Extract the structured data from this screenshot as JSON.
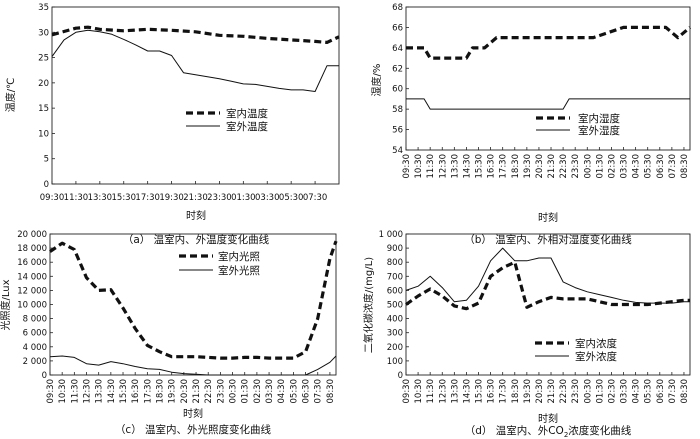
{
  "chart_data": [
    {
      "id": "a",
      "type": "line",
      "caption": "（a） 温室内、外温度变化曲线",
      "xlabel": "时刻",
      "ylabel": "温度/℃",
      "ylim": [
        0,
        35
      ],
      "yticks": [
        "0",
        "5",
        "10",
        "15",
        "20",
        "25",
        "30",
        "35"
      ],
      "ytick_values": [
        0,
        5,
        10,
        15,
        20,
        25,
        30,
        35
      ],
      "categories": [
        "09:30",
        "11:30",
        "13:30",
        "15:30",
        "17:30",
        "19:30",
        "21:30",
        "23:30",
        "01:30",
        "03:30",
        "05:30",
        "07:30"
      ],
      "xrange": [
        7.5,
        31.5
      ],
      "legend_position": "center",
      "series": [
        {
          "name": "室内温度",
          "style": "dashed",
          "x": [
            7.5,
            9.5,
            10.5,
            11.5,
            13.5,
            15.5,
            17.5,
            19.5,
            21.5,
            23.5,
            25.5,
            27.5,
            29.5,
            30.5,
            31.5
          ],
          "y": [
            29.5,
            30.8,
            31,
            30.6,
            30.3,
            30.6,
            30.4,
            30.1,
            29.4,
            29.2,
            28.8,
            28.5,
            28.2,
            28.0,
            29.1
          ]
        },
        {
          "name": "室外温度",
          "style": "solid",
          "x": [
            7.5,
            8.5,
            9.5,
            10.5,
            11.5,
            12.5,
            13.5,
            14.5,
            15.5,
            16.5,
            17.5,
            18.5,
            19.5,
            20.5,
            21.5,
            22.5,
            23.5,
            24.5,
            25.5,
            26.5,
            27.5,
            28.5,
            29.5,
            30.5,
            31.5
          ],
          "y": [
            25.2,
            28.5,
            30,
            30.4,
            30.1,
            29.6,
            28.6,
            27.5,
            26.3,
            26.3,
            25.4,
            22,
            21.6,
            21.2,
            20.8,
            20.3,
            19.8,
            19.7,
            19.3,
            18.9,
            18.6,
            18.6,
            18.3,
            23.4,
            23.4
          ]
        }
      ]
    },
    {
      "id": "b",
      "type": "line",
      "caption": "（b） 温室内、外相对湿度变化曲线",
      "xlabel": "时刻",
      "ylabel": "湿度/%",
      "ylim": [
        54,
        68
      ],
      "yticks": [
        "54",
        "56",
        "58",
        "60",
        "62",
        "64",
        "66",
        "68"
      ],
      "ytick_values": [
        54,
        56,
        58,
        60,
        62,
        64,
        66,
        68
      ],
      "categories": [
        "09:30",
        "10:30",
        "11:30",
        "12:30",
        "13:30",
        "14:30",
        "15:30",
        "16:30",
        "17:30",
        "18:30",
        "19:30",
        "20:30",
        "21:30",
        "22:30",
        "23:30",
        "00:30",
        "01:30",
        "02:30",
        "03:30",
        "04:30",
        "05:30",
        "06:30",
        "07:30",
        "08:30"
      ],
      "xrange": [
        9,
        32.5
      ],
      "legend_position": "center-right",
      "series": [
        {
          "name": "室内湿度",
          "style": "dashed",
          "x": [
            9,
            10.5,
            11,
            14,
            14.5,
            15.5,
            16.5,
            17,
            24.5,
            27,
            30.5,
            31.5,
            32.5
          ],
          "y": [
            64,
            64,
            63,
            63,
            64,
            64,
            65,
            65,
            65,
            66,
            66,
            65,
            66
          ]
        },
        {
          "name": "室外湿度",
          "style": "solid",
          "x": [
            9,
            10.5,
            11,
            22,
            22.5,
            32.5
          ],
          "y": [
            59,
            59,
            58,
            58,
            59,
            59
          ]
        }
      ]
    },
    {
      "id": "c",
      "type": "line",
      "caption": "（c） 温室内、外光照度变化曲线",
      "xlabel": "时刻",
      "ylabel": "光照度/Lux",
      "ylim": [
        0,
        20000
      ],
      "yticks": [
        "0",
        "2 000",
        "4 000",
        "6 000",
        "8 000",
        "10 000",
        "12 000",
        "14 000",
        "16 000",
        "18 000",
        "20 000"
      ],
      "ytick_values": [
        0,
        2000,
        4000,
        6000,
        8000,
        10000,
        12000,
        14000,
        16000,
        18000,
        20000
      ],
      "categories": [
        "09:30",
        "10:30",
        "11:30",
        "12:30",
        "13:30",
        "14:30",
        "15:30",
        "16:30",
        "17:30",
        "18:30",
        "19:30",
        "20:30",
        "21:30",
        "22:30",
        "23:30",
        "00:30",
        "01:30",
        "02:30",
        "03:30",
        "04:30",
        "05:30",
        "06:30",
        "07:30",
        "08:30"
      ],
      "xrange": [
        9,
        32.5
      ],
      "legend_position": "top-right",
      "series": [
        {
          "name": "室内光照",
          "style": "dashed",
          "x": [
            9,
            10,
            11,
            12,
            13,
            14,
            15,
            16,
            17,
            18,
            19,
            20,
            21,
            22,
            23,
            24,
            25,
            26,
            27,
            28,
            29,
            30,
            31,
            32,
            32.5
          ],
          "y": [
            17500,
            18700,
            17800,
            13800,
            12000,
            12100,
            9500,
            6600,
            4200,
            3300,
            2600,
            2600,
            2600,
            2500,
            2400,
            2400,
            2500,
            2500,
            2400,
            2400,
            2400,
            3300,
            8000,
            16500,
            19000
          ]
        },
        {
          "name": "室外光照",
          "style": "solid",
          "x": [
            9,
            10,
            11,
            12,
            13,
            14,
            15,
            16,
            17,
            18,
            19,
            20,
            21,
            22,
            23,
            29,
            30,
            31,
            32,
            32.5
          ],
          "y": [
            2600,
            2700,
            2500,
            1600,
            1400,
            1900,
            1600,
            1200,
            900,
            800,
            400,
            200,
            100,
            0,
            0,
            0,
            0,
            800,
            1800,
            2700
          ]
        }
      ]
    },
    {
      "id": "d",
      "type": "line",
      "caption_prefix": "（d） 温室内、外CO",
      "caption_sub": "2",
      "caption_suffix": "浓度变化曲线",
      "xlabel": "时刻",
      "ylabel": "二氧化碳浓度/(mg/L)",
      "ylim": [
        0,
        1000
      ],
      "yticks": [
        "0",
        "100",
        "200",
        "300",
        "400",
        "500",
        "600",
        "700",
        "800",
        "900",
        "1 000"
      ],
      "ytick_values": [
        0,
        100,
        200,
        300,
        400,
        500,
        600,
        700,
        800,
        900,
        1000
      ],
      "categories": [
        "09:30",
        "10:30",
        "11:30",
        "12:30",
        "13:30",
        "14:30",
        "15:30",
        "16:30",
        "17:30",
        "18:30",
        "19:30",
        "20:30",
        "21:30",
        "22:30",
        "23:30",
        "00:30",
        "01:30",
        "02:30",
        "03:30",
        "04:30",
        "05:30",
        "06:30",
        "07:30",
        "08:30"
      ],
      "xrange": [
        9,
        32.5
      ],
      "legend_position": "bottom-center",
      "series": [
        {
          "name": "室内浓度",
          "style": "dashed",
          "x": [
            9,
            10,
            11,
            12,
            13,
            14,
            15,
            16,
            17,
            18,
            19,
            20,
            21,
            22,
            23,
            24,
            25,
            26,
            27,
            28,
            29,
            30,
            31,
            32,
            32.5
          ],
          "y": [
            500,
            560,
            610,
            560,
            490,
            470,
            510,
            700,
            760,
            800,
            480,
            520,
            550,
            540,
            540,
            540,
            520,
            500,
            500,
            500,
            500,
            510,
            520,
            530,
            530
          ]
        },
        {
          "name": "室外浓度",
          "style": "solid",
          "x": [
            9,
            10,
            11,
            12,
            13,
            14,
            15,
            16,
            17,
            18,
            19,
            20,
            21,
            22,
            23,
            24,
            25,
            26,
            27,
            28,
            29,
            30,
            31,
            32,
            32.5
          ],
          "y": [
            600,
            630,
            700,
            620,
            520,
            530,
            630,
            810,
            900,
            810,
            810,
            830,
            830,
            660,
            620,
            590,
            570,
            550,
            530,
            515,
            510,
            510,
            510,
            520,
            520
          ]
        }
      ]
    }
  ]
}
